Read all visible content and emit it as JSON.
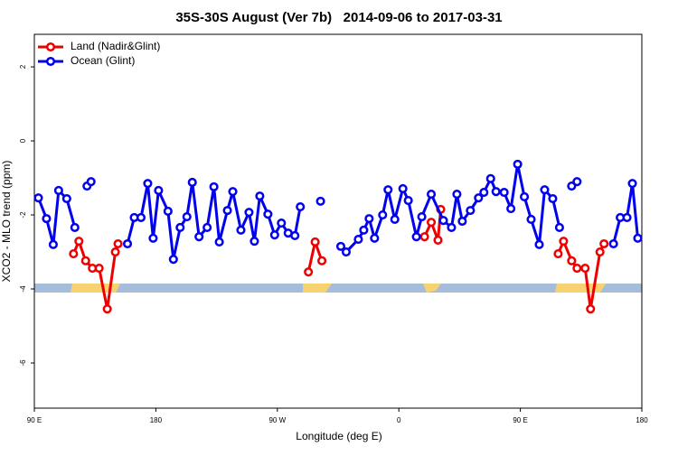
{
  "chart_data": {
    "type": "line",
    "title": "35S-30S August (Ver 7b)   2014-09-06 to 2017-03-31",
    "x_label": "Longitude (deg E)",
    "y_label": "XCO2 - MLO trend (ppm)",
    "xlim": [
      90,
      540
    ],
    "xticks": [
      {
        "value": 90,
        "label": "90 E"
      },
      180,
      {
        "value": 270,
        "label": "90 W"
      },
      {
        "value": 360,
        "label": "0"
      },
      {
        "value": 450,
        "label": "90 E"
      },
      {
        "value": 540,
        "label": "180"
      }
    ],
    "ylim": [
      -7.22,
      2.88
    ],
    "yticks": [
      2,
      0,
      -2,
      -4,
      -6
    ],
    "legend": "top-left",
    "series": [
      {
        "name": "Land (Nadir&Glint)",
        "color": "#ee0000",
        "x": [
          119,
          123,
          128,
          133,
          138,
          144,
          150,
          152,
          null,
          293,
          298,
          303,
          null,
          379,
          384,
          389,
          391,
          null,
          478,
          482,
          488,
          492,
          498,
          502,
          509,
          512
        ],
        "values": [
          -3.05,
          -2.71,
          -3.24,
          -3.44,
          -3.44,
          -4.54,
          -3.0,
          -2.78,
          null,
          -3.54,
          -2.73,
          -3.24,
          null,
          -2.59,
          -2.2,
          -2.68,
          -1.85,
          null,
          -3.05,
          -2.71,
          -3.24,
          -3.44,
          -3.44,
          -4.54,
          -3.0,
          -2.78
        ]
      },
      {
        "name": "Ocean (Glint)",
        "color": "#0000ee",
        "x": [
          93,
          99,
          104,
          108,
          114,
          120,
          null,
          129,
          132,
          null,
          159,
          164,
          169,
          174,
          178,
          182,
          189,
          193,
          198,
          203,
          207,
          212,
          218,
          223,
          227,
          233,
          237,
          243,
          249,
          253,
          257,
          263,
          268,
          273,
          278,
          283,
          287,
          null,
          302,
          null,
          317,
          321,
          330,
          334,
          338,
          342,
          348,
          352,
          357,
          363,
          367,
          373,
          377,
          384,
          393,
          399,
          403,
          407,
          413,
          419,
          423,
          428,
          432,
          438,
          443,
          448,
          453,
          458,
          464,
          468,
          474,
          479,
          null,
          488,
          492,
          null,
          519,
          524,
          529,
          533,
          537
        ],
        "values": [
          -1.54,
          -2.1,
          -2.8,
          -1.34,
          -1.56,
          -2.34,
          null,
          -1.22,
          -1.1,
          null,
          -2.78,
          -2.07,
          -2.07,
          -1.15,
          -2.63,
          -1.34,
          -1.9,
          -3.2,
          -2.34,
          -2.05,
          -1.12,
          -2.59,
          -2.34,
          -1.24,
          -2.73,
          -1.88,
          -1.37,
          -2.41,
          -1.93,
          -2.71,
          -1.49,
          -1.98,
          -2.54,
          -2.22,
          -2.49,
          -2.56,
          -1.78,
          null,
          -1.63,
          null,
          -2.85,
          -3.0,
          -2.66,
          -2.41,
          -2.1,
          -2.63,
          -2.0,
          -1.32,
          -2.12,
          -1.29,
          -1.61,
          -2.59,
          -2.05,
          -1.44,
          -2.15,
          -2.34,
          -1.44,
          -2.17,
          -1.88,
          -1.54,
          -1.39,
          -1.02,
          -1.37,
          -1.39,
          -1.83,
          -0.63,
          -1.51,
          -2.12,
          -2.8,
          -1.32,
          -1.56,
          -2.34,
          null,
          -1.22,
          -1.1,
          null,
          -2.78,
          -2.07,
          -2.07,
          -1.15,
          -2.63
        ]
      }
    ]
  }
}
